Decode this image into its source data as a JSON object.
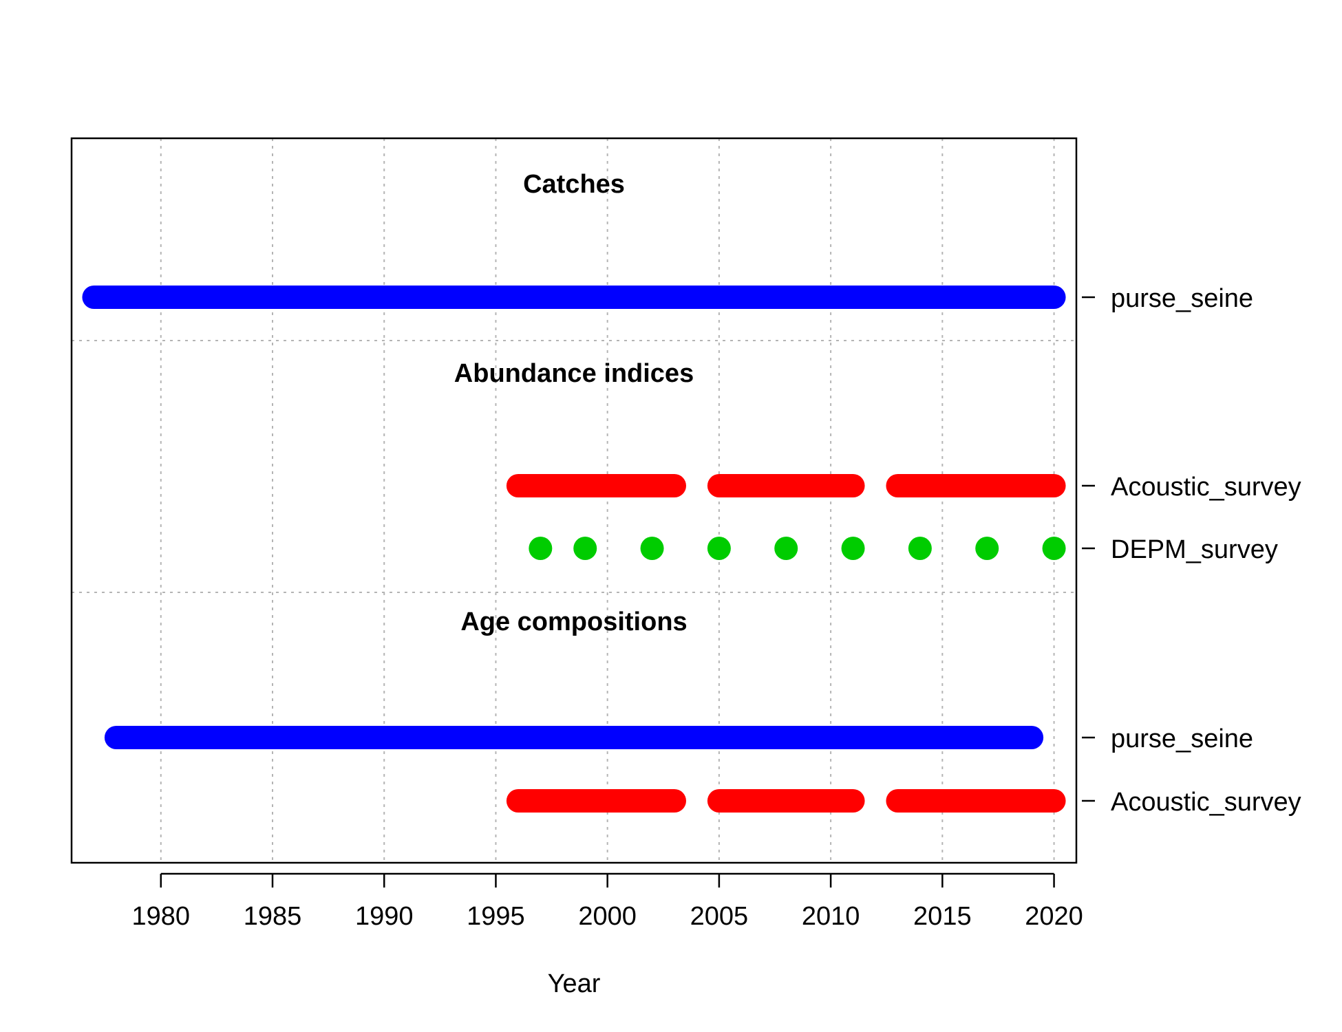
{
  "chart_data": {
    "type": "timeline",
    "xlabel": "Year",
    "xlim": [
      1976,
      2021
    ],
    "xticks": [
      1980,
      1985,
      1990,
      1995,
      2000,
      2005,
      2010,
      2015,
      2020
    ],
    "grid": true,
    "colors": {
      "purse_seine": "#0000ff",
      "Acoustic_survey": "#ff0000",
      "DEPM_survey": "#00cc00"
    },
    "sections": [
      {
        "title": "Catches",
        "rows": [
          {
            "label": "purse_seine",
            "color": "#0000ff",
            "segments": [
              [
                1977,
                2020
              ]
            ]
          }
        ]
      },
      {
        "title": "Abundance indices",
        "rows": [
          {
            "label": "Acoustic_survey",
            "color": "#ff0000",
            "segments": [
              [
                1996,
                2003
              ],
              [
                2005,
                2011
              ],
              [
                2013,
                2020
              ]
            ]
          },
          {
            "label": "DEPM_survey",
            "color": "#00cc00",
            "points": [
              1997,
              1999,
              2002,
              2005,
              2008,
              2011,
              2014,
              2017,
              2020
            ]
          }
        ]
      },
      {
        "title": "Age compositions",
        "rows": [
          {
            "label": "purse_seine",
            "color": "#0000ff",
            "segments": [
              [
                1978,
                2019
              ]
            ]
          },
          {
            "label": "Acoustic_survey",
            "color": "#ff0000",
            "segments": [
              [
                1996,
                2003
              ],
              [
                2005,
                2011
              ],
              [
                2013,
                2020
              ]
            ]
          }
        ]
      }
    ]
  }
}
